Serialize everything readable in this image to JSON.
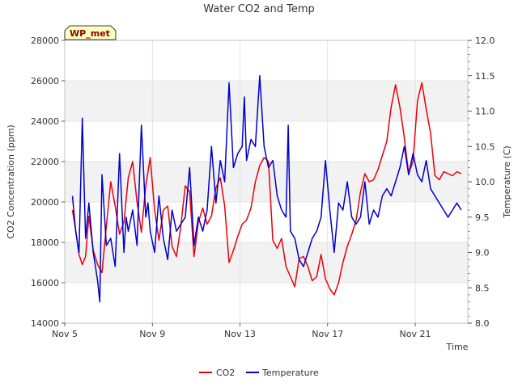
{
  "chart_data": {
    "type": "line",
    "title": "Water CO2 and Temp",
    "xlabel": "Time",
    "ylabel_left": "CO2 Concentration (ppm)",
    "ylabel_right": "Temperature (C)",
    "annotation": "WP_met",
    "x_ticks": [
      "Nov 5",
      "Nov 9",
      "Nov 13",
      "Nov 17",
      "Nov 21"
    ],
    "y_left_ticks": [
      "14000",
      "16000",
      "18000",
      "20000",
      "22000",
      "24000",
      "26000",
      "28000"
    ],
    "y_right_ticks": [
      "8.0",
      "8.5",
      "9.0",
      "9.5",
      "10.0",
      "10.5",
      "11.0",
      "11.5",
      "12.0"
    ],
    "xlim": [
      5,
      23.4
    ],
    "ylim_left": [
      14000,
      28000
    ],
    "ylim_right": [
      8.0,
      12.0
    ],
    "grid": true,
    "legend_position": "bottom-center",
    "series": [
      {
        "name": "CO2",
        "axis": "left",
        "color": "#e8000b",
        "x": [
          5.35,
          5.5,
          5.65,
          5.8,
          5.95,
          6.1,
          6.3,
          6.5,
          6.7,
          6.9,
          7.1,
          7.3,
          7.5,
          7.7,
          7.9,
          8.1,
          8.3,
          8.5,
          8.7,
          8.9,
          9.1,
          9.3,
          9.5,
          9.7,
          9.9,
          10.1,
          10.3,
          10.5,
          10.7,
          10.9,
          11.1,
          11.3,
          11.5,
          11.7,
          11.9,
          12.1,
          12.3,
          12.5,
          12.7,
          12.9,
          13.1,
          13.3,
          13.5,
          13.7,
          13.9,
          14.1,
          14.3,
          14.5,
          14.7,
          14.9,
          15.1,
          15.3,
          15.5,
          15.7,
          15.9,
          16.1,
          16.3,
          16.5,
          16.7,
          16.9,
          17.1,
          17.3,
          17.5,
          17.7,
          17.9,
          18.1,
          18.3,
          18.5,
          18.7,
          18.9,
          19.1,
          19.3,
          19.5,
          19.7,
          19.9,
          20.1,
          20.3,
          20.5,
          20.7,
          20.9,
          21.1,
          21.3,
          21.5,
          21.7,
          21.9,
          22.1,
          22.3,
          22.5,
          22.7,
          22.9,
          23.1
        ],
        "values": [
          19600,
          18600,
          17400,
          16900,
          17300,
          19300,
          17600,
          16900,
          16500,
          18800,
          21000,
          19800,
          18400,
          19000,
          21200,
          22000,
          20000,
          18500,
          20800,
          22200,
          19600,
          18100,
          19600,
          19800,
          17800,
          17300,
          18800,
          20800,
          20500,
          17300,
          19000,
          19700,
          18900,
          19300,
          20700,
          21200,
          19800,
          17000,
          17600,
          18300,
          18900,
          19100,
          19700,
          21000,
          21800,
          22200,
          22000,
          18100,
          17700,
          18200,
          16800,
          16300,
          15800,
          17200,
          17300,
          16800,
          16100,
          16300,
          17400,
          16200,
          15700,
          15400,
          16000,
          17000,
          17800,
          18400,
          19100,
          20500,
          21400,
          21000,
          21100,
          21600,
          22300,
          23000,
          24700,
          25800,
          24700,
          23200,
          21400,
          22000,
          25000,
          25900,
          24600,
          23400,
          21300,
          21100,
          21500,
          21400,
          21300,
          21500,
          21400
        ]
      },
      {
        "name": "Temperature",
        "axis": "right",
        "color": "#0000cc",
        "x": [
          5.35,
          5.5,
          5.65,
          5.8,
          5.95,
          6.1,
          6.3,
          6.5,
          6.6,
          6.7,
          6.9,
          7.1,
          7.3,
          7.5,
          7.7,
          7.8,
          7.9,
          8.1,
          8.3,
          8.5,
          8.7,
          8.8,
          8.9,
          9.1,
          9.3,
          9.5,
          9.7,
          9.9,
          10.1,
          10.3,
          10.5,
          10.7,
          10.9,
          11.1,
          11.3,
          11.5,
          11.7,
          11.9,
          12.1,
          12.3,
          12.5,
          12.7,
          12.9,
          13.1,
          13.2,
          13.3,
          13.5,
          13.7,
          13.9,
          14.1,
          14.3,
          14.5,
          14.7,
          14.9,
          15.1,
          15.2,
          15.3,
          15.5,
          15.7,
          15.9,
          16.1,
          16.3,
          16.5,
          16.7,
          16.9,
          17.1,
          17.3,
          17.5,
          17.7,
          17.9,
          18.1,
          18.3,
          18.5,
          18.7,
          18.9,
          19.1,
          19.3,
          19.5,
          19.7,
          19.9,
          20.1,
          20.3,
          20.5,
          20.7,
          20.9,
          21.1,
          21.3,
          21.5,
          21.7,
          21.9,
          22.1,
          22.3,
          22.5,
          22.7,
          22.9,
          23.1
        ],
        "values": [
          9.8,
          9.3,
          9.0,
          10.9,
          9.2,
          9.7,
          9.0,
          8.6,
          8.3,
          10.1,
          9.1,
          9.2,
          8.8,
          10.4,
          9.0,
          9.5,
          9.3,
          9.6,
          9.1,
          10.8,
          9.5,
          9.7,
          9.3,
          9.0,
          9.8,
          9.2,
          8.9,
          9.6,
          9.3,
          9.4,
          9.5,
          10.2,
          9.1,
          9.5,
          9.3,
          9.6,
          10.5,
          9.7,
          10.3,
          10.0,
          11.4,
          10.2,
          10.4,
          10.5,
          11.2,
          10.3,
          10.6,
          10.5,
          11.5,
          10.5,
          10.2,
          10.3,
          9.8,
          9.6,
          9.5,
          10.8,
          9.3,
          9.2,
          8.9,
          8.8,
          9.0,
          9.2,
          9.3,
          9.5,
          10.3,
          9.6,
          9.0,
          9.7,
          9.6,
          10.0,
          9.5,
          9.4,
          9.5,
          10.0,
          9.4,
          9.6,
          9.5,
          9.8,
          9.9,
          9.8,
          10.0,
          10.2,
          10.5,
          10.1,
          10.4,
          10.1,
          10.0,
          10.3,
          9.9,
          9.8,
          9.7,
          9.6,
          9.5,
          9.6,
          9.7,
          9.6
        ]
      }
    ]
  }
}
